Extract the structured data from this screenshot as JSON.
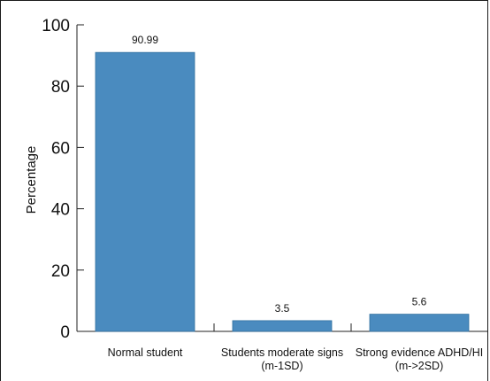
{
  "chart_data": {
    "type": "bar",
    "title": "",
    "xlabel": "",
    "ylabel": "Percentage",
    "ylim": [
      0,
      100
    ],
    "yticks": [
      "0",
      "20",
      "40",
      "60",
      "80",
      "100"
    ],
    "categories": [
      [
        "Normal student"
      ],
      [
        "Students moderate signs",
        "(m-1SD)"
      ],
      [
        "Strong evidence ADHD/HI",
        "(m->2SD)"
      ]
    ],
    "values": [
      90.99,
      3.5,
      5.6
    ],
    "value_labels": [
      "90.99",
      "3.5",
      "5.6"
    ],
    "bar_color": "#4a8bbf",
    "grid": false,
    "legend": "none"
  }
}
